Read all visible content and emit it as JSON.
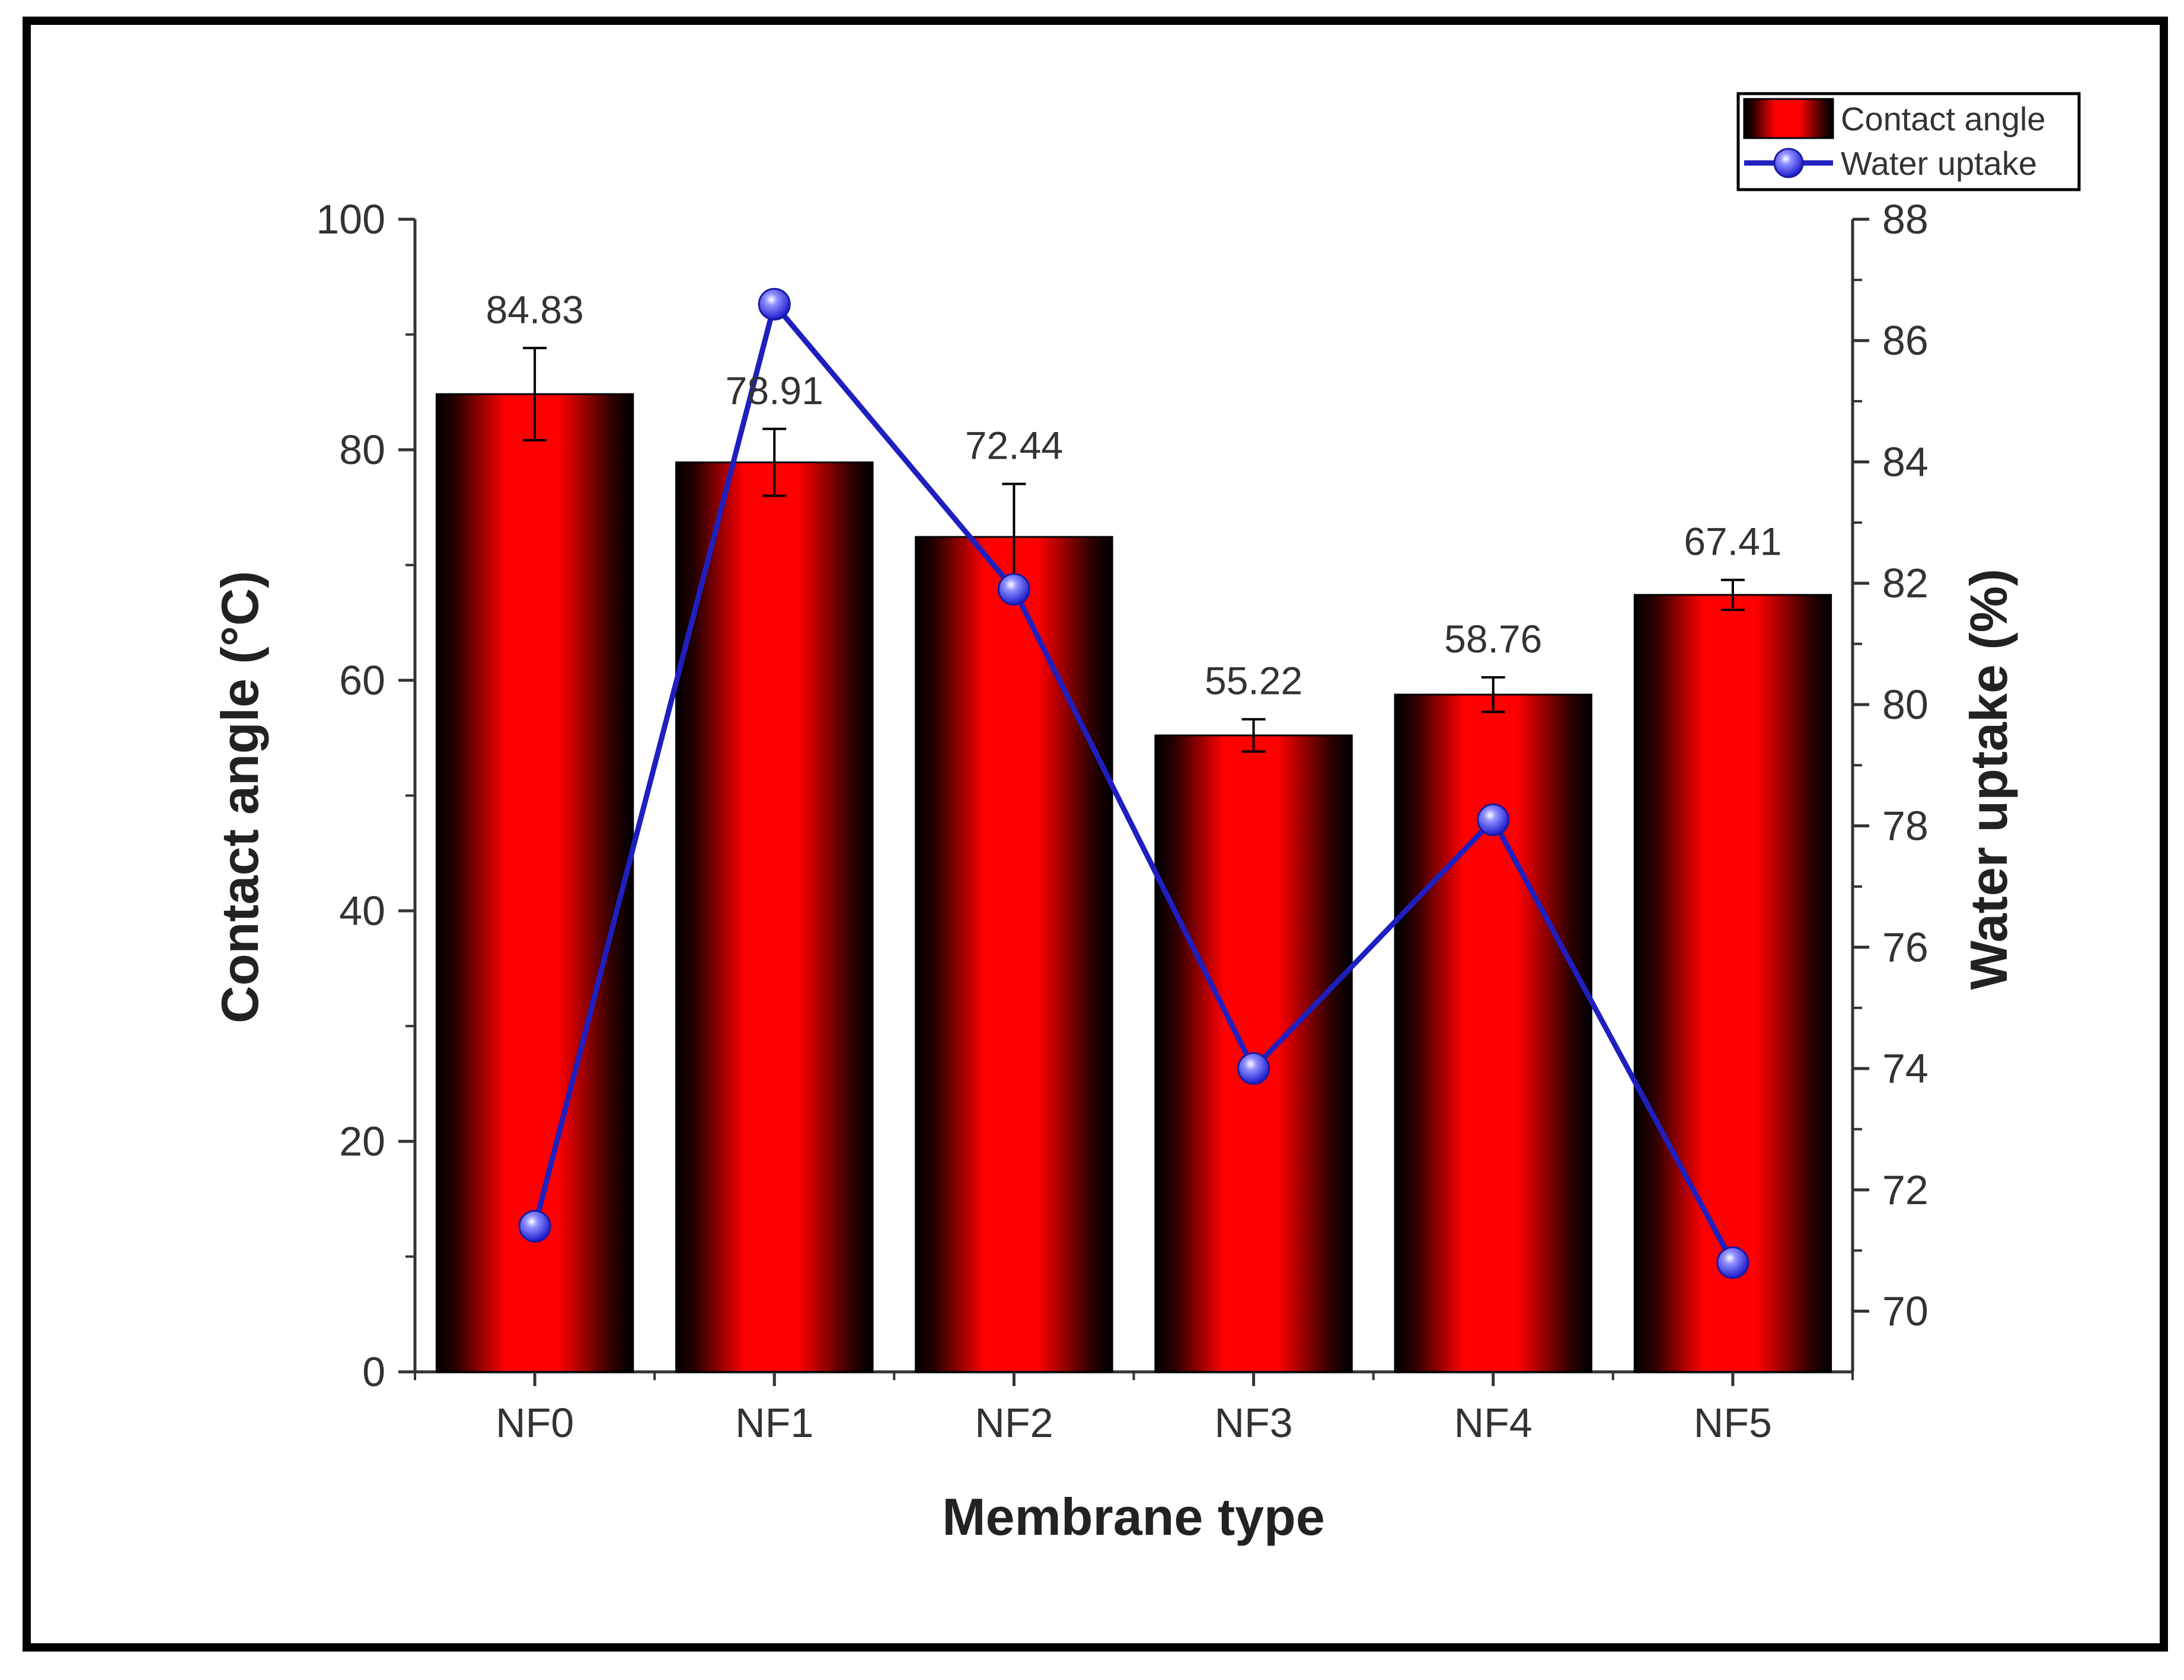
{
  "chart_data": {
    "type": "bar",
    "categories": [
      "NF0",
      "NF1",
      "NF2",
      "NF3",
      "NF4",
      "NF5"
    ],
    "series": [
      {
        "name": "Contact angle",
        "type": "bar",
        "axis": "left",
        "values": [
          84.83,
          78.91,
          72.44,
          55.22,
          58.76,
          67.41
        ],
        "errors": [
          4.0,
          2.9,
          4.6,
          1.4,
          1.5,
          1.3
        ],
        "data_labels": [
          "84.83",
          "78.91",
          "72.44",
          "55.22",
          "58.76",
          "67.41"
        ],
        "color": "#ff0000",
        "shade_color": "#000000"
      },
      {
        "name": "Water uptake",
        "type": "line",
        "axis": "right",
        "values": [
          71.4,
          86.6,
          81.9,
          74.0,
          78.1,
          70.8
        ],
        "color": "#1f1fbf",
        "marker_color": "#3a3aff"
      }
    ],
    "xlabel": "Membrane type",
    "ylabel": "Contact angle (°C)",
    "y2label": "Water uptake (%)",
    "ylim": [
      0,
      100
    ],
    "y2lim": [
      69,
      88
    ],
    "yticks": [
      "0",
      "20",
      "40",
      "60",
      "80",
      "100"
    ],
    "y2ticks": [
      "70",
      "72",
      "74",
      "76",
      "78",
      "80",
      "82",
      "84",
      "86",
      "88"
    ],
    "grid": false,
    "legend": {
      "position": "top-right",
      "items": [
        "Contact angle",
        "Water uptake"
      ]
    }
  }
}
